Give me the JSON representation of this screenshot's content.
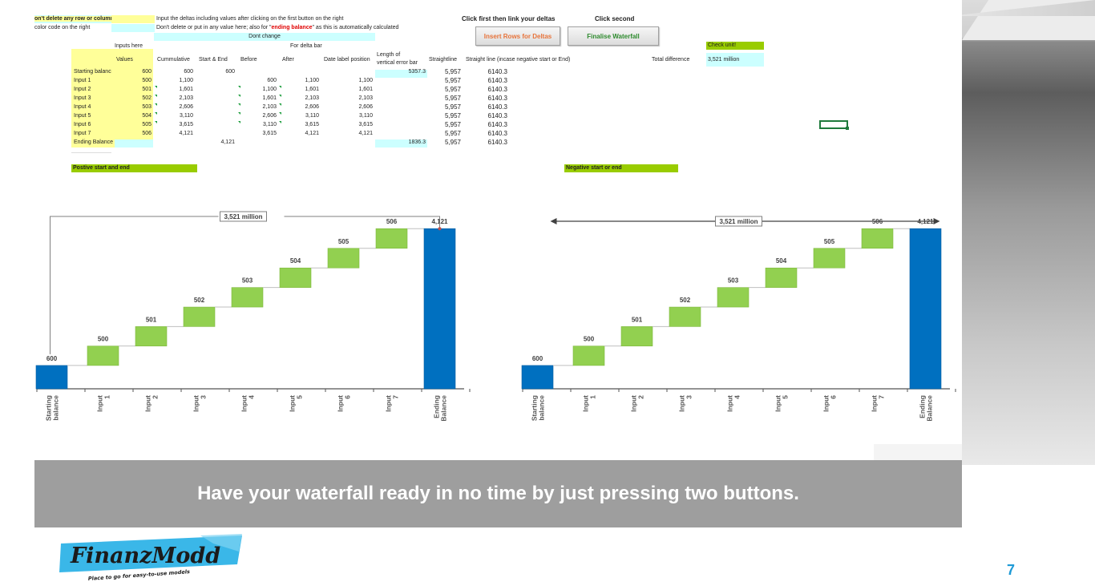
{
  "sheet": {
    "warning": "on't delete any row or column",
    "color_note": "color code on the right",
    "instr1": "Input the deltas including values after clicking on the first button on the right",
    "instr2_pre": "Don't delete or put in any value here; also for \"",
    "instr2_red": "ending balance",
    "instr2_post": "\" as this is automatically calculated",
    "dont_change": "Dont change",
    "click_first": "Click first then link your deltas",
    "click_second": "Click second",
    "btn_insert": "Insert Rows for Deltas",
    "btn_finalise": "Finalise Waterfall",
    "inputs_here": "Inputs here",
    "for_delta_bar": "For delta bar",
    "check_unit": "Check unit!",
    "unit_value": "3,521 million",
    "total_difference": "Total difference",
    "headers": {
      "values": "Values",
      "cumulative": "Cummulative",
      "start_end": "Start & End",
      "before": "Before",
      "after": "After",
      "date_label": "Date label position",
      "length_line1": "Length of",
      "length_line2": "vertical error bar",
      "straightline": "Straightline",
      "straight_neg": "Straight line (incase negative start or End)"
    },
    "rows": [
      {
        "label": "Starting balanc",
        "value": "600",
        "cum": "600",
        "se": "600",
        "before": "",
        "after": "",
        "date": "",
        "length": "5357.3",
        "straight": "5,957",
        "neg": "6140.3"
      },
      {
        "label": "Input 1",
        "value": "500",
        "cum": "1,100",
        "se": "",
        "before": "600",
        "after": "1,100",
        "date": "1,100",
        "length": "",
        "straight": "5,957",
        "neg": "6140.3"
      },
      {
        "label": "Input 2",
        "value": "501",
        "cum": "1,601",
        "se": "",
        "before": "1,100",
        "after": "1,601",
        "date": "1,601",
        "length": "",
        "straight": "5,957",
        "neg": "6140.3"
      },
      {
        "label": "Input 3",
        "value": "502",
        "cum": "2,103",
        "se": "",
        "before": "1,601",
        "after": "2,103",
        "date": "2,103",
        "length": "",
        "straight": "5,957",
        "neg": "6140.3"
      },
      {
        "label": "Input 4",
        "value": "503",
        "cum": "2,606",
        "se": "",
        "before": "2,103",
        "after": "2,606",
        "date": "2,606",
        "length": "",
        "straight": "5,957",
        "neg": "6140.3"
      },
      {
        "label": "Input 5",
        "value": "504",
        "cum": "3,110",
        "se": "",
        "before": "2,606",
        "after": "3,110",
        "date": "3,110",
        "length": "",
        "straight": "5,957",
        "neg": "6140.3"
      },
      {
        "label": "Input 6",
        "value": "505",
        "cum": "3,615",
        "se": "",
        "before": "3,110",
        "after": "3,615",
        "date": "3,615",
        "length": "",
        "straight": "5,957",
        "neg": "6140.3"
      },
      {
        "label": "Input 7",
        "value": "506",
        "cum": "4,121",
        "se": "",
        "before": "3,615",
        "after": "4,121",
        "date": "4,121",
        "length": "",
        "straight": "5,957",
        "neg": "6140.3"
      },
      {
        "label": "Ending Balance",
        "value": "",
        "cum": "",
        "se": "4,121",
        "before": "",
        "after": "",
        "date": "",
        "length": "1836.3",
        "straight": "5,957",
        "neg": "6140.3"
      }
    ],
    "positive_title": "Postive start and end",
    "negative_title": "Negative start or end"
  },
  "chart_data": [
    {
      "type": "bar",
      "title": "Postive start and end",
      "categories": [
        "Starting balance",
        "Input 1",
        "Input 2",
        "Input 3",
        "Input 4",
        "Input 5",
        "Input 6",
        "Input 7",
        "Ending Balance"
      ],
      "start_value": 600,
      "deltas": [
        500,
        501,
        502,
        503,
        504,
        505,
        506
      ],
      "end_value": 4121,
      "labels": [
        "600",
        "500",
        "501",
        "502",
        "503",
        "504",
        "505",
        "506",
        "4,121"
      ],
      "total_label": "3,521 million",
      "colors": {
        "total": "#0070c0",
        "delta": "#92d050"
      },
      "ylim": [
        0,
        4600
      ]
    },
    {
      "type": "bar",
      "title": "Negative start or end",
      "categories": [
        "Starting balance",
        "Input 1",
        "Input 2",
        "Input 3",
        "Input 4",
        "Input 5",
        "Input 6",
        "Input 7",
        "Ending Balance"
      ],
      "start_value": 600,
      "deltas": [
        500,
        501,
        502,
        503,
        504,
        505,
        506
      ],
      "end_value": 4121,
      "labels": [
        "600",
        "500",
        "501",
        "502",
        "503",
        "504",
        "505",
        "506",
        "4,121"
      ],
      "total_label": "3,521 million",
      "colors": {
        "total": "#0070c0",
        "delta": "#92d050"
      },
      "ylim": [
        0,
        4600
      ]
    }
  ],
  "footer": {
    "banner": "Have your waterfall ready in no time by just pressing two buttons.",
    "logo_text": "FinanzModd",
    "logo_tagline": "Place to go for easy-to-use models",
    "page_number": "7"
  }
}
